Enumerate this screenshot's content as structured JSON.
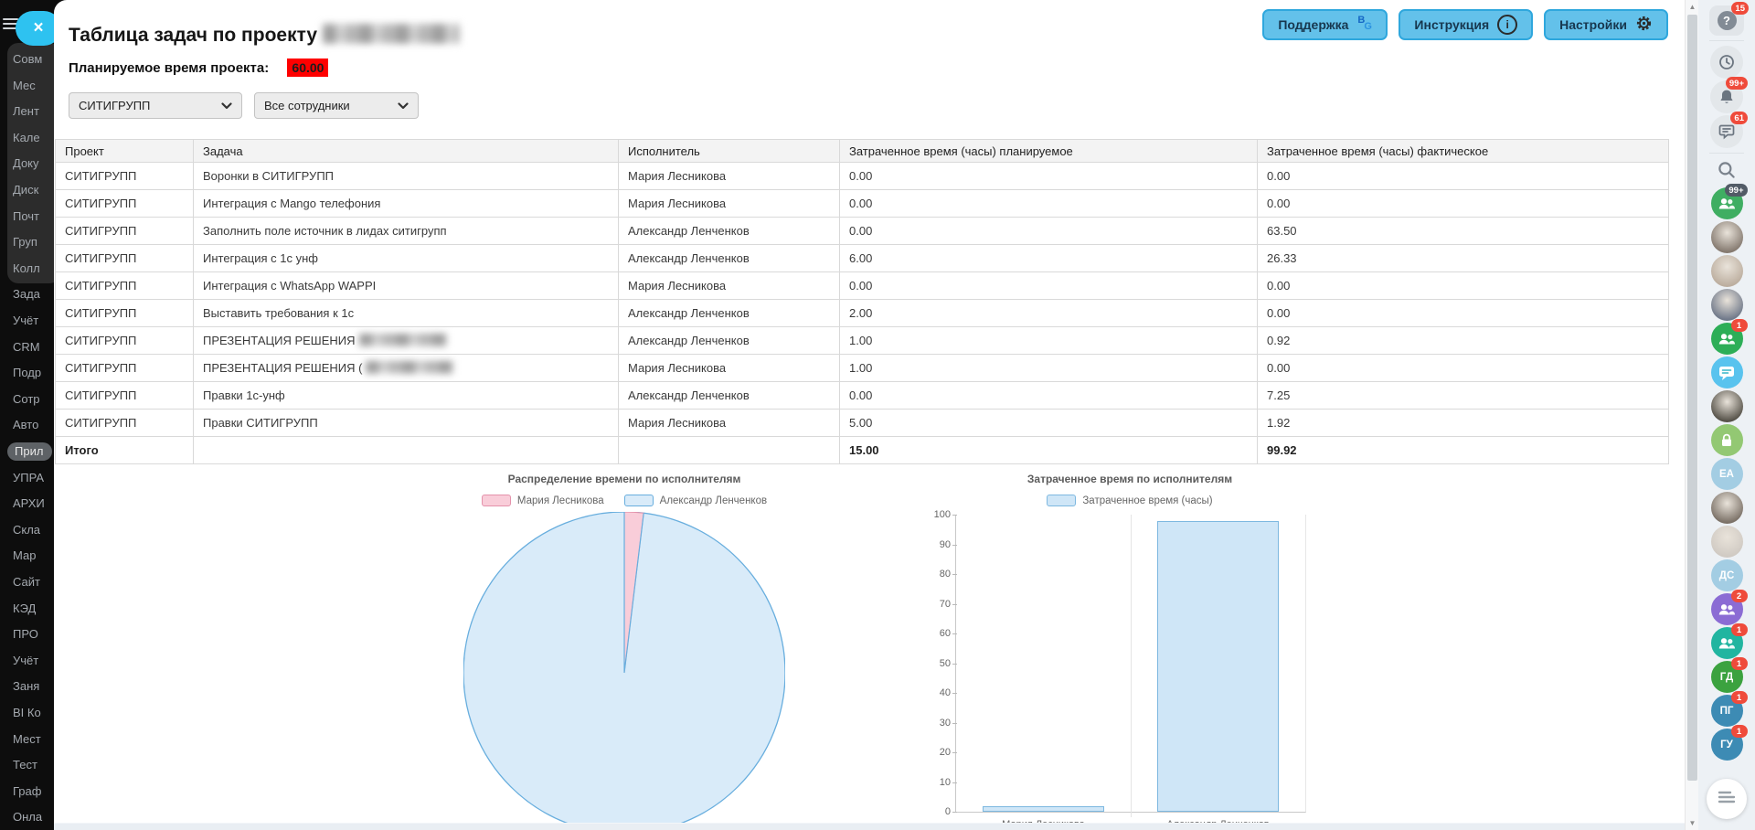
{
  "page": {
    "title": "Таблица задач по проекту"
  },
  "toolbar": {
    "support_label": "Поддержка",
    "instruction_label": "Инструкция",
    "settings_label": "Настройки"
  },
  "planned": {
    "label": "Планируемое время проекта:",
    "value": "60.00"
  },
  "filters": {
    "project": "СИТИГРУПП",
    "employees": "Все сотрудники"
  },
  "table": {
    "columns": [
      "Проект",
      "Задача",
      "Исполнитель",
      "Затраченное время (часы) планируемое",
      "Затраченное время (часы) фактическое"
    ],
    "rows": [
      {
        "project": "СИТИГРУПП",
        "task": "Воронки в СИТИГРУПП",
        "redacted": false,
        "executor": "Мария Лесникова",
        "planned": "0.00",
        "actual": "0.00"
      },
      {
        "project": "СИТИГРУПП",
        "task": "Интеграция с Mango телефония",
        "redacted": false,
        "executor": "Мария Лесникова",
        "planned": "0.00",
        "actual": "0.00"
      },
      {
        "project": "СИТИГРУПП",
        "task": "Заполнить поле источник в лидах ситигрупп",
        "redacted": false,
        "executor": "Александр Ленченков",
        "planned": "0.00",
        "actual": "63.50"
      },
      {
        "project": "СИТИГРУПП",
        "task": "Интеграция с 1с унф",
        "redacted": false,
        "executor": "Александр Ленченков",
        "planned": "6.00",
        "actual": "26.33"
      },
      {
        "project": "СИТИГРУПП",
        "task": "Интеграция с WhatsApp WAPPI",
        "redacted": false,
        "executor": "Мария Лесникова",
        "planned": "0.00",
        "actual": "0.00"
      },
      {
        "project": "СИТИГРУПП",
        "task": "Выставить требования к 1с",
        "redacted": false,
        "executor": "Александр Ленченков",
        "planned": "2.00",
        "actual": "0.00"
      },
      {
        "project": "СИТИГРУПП",
        "task": "ПРЕЗЕНТАЦИЯ РЕШЕНИЯ",
        "redacted": true,
        "executor": "Александр Ленченков",
        "planned": "1.00",
        "actual": "0.92"
      },
      {
        "project": "СИТИГРУПП",
        "task": "ПРЕЗЕНТАЦИЯ РЕШЕНИЯ (",
        "redacted": true,
        "executor": "Мария Лесникова",
        "planned": "1.00",
        "actual": "0.00"
      },
      {
        "project": "СИТИГРУПП",
        "task": "Правки 1с-унф",
        "redacted": false,
        "executor": "Александр Ленченков",
        "planned": "0.00",
        "actual": "7.25"
      },
      {
        "project": "СИТИГРУПП",
        "task": "Правки СИТИГРУПП",
        "redacted": false,
        "executor": "Мария Лесникова",
        "planned": "5.00",
        "actual": "1.92"
      }
    ],
    "total": {
      "label": "Итого",
      "planned": "15.00",
      "actual": "99.92"
    }
  },
  "chart_data": [
    {
      "type": "pie",
      "title": "Распределение времени по исполнителям",
      "series": [
        {
          "name": "Мария Лесникова",
          "value": 1.92
        },
        {
          "name": "Александр Ленченков",
          "value": 98.0
        }
      ],
      "colors": [
        {
          "fill": "#f9cdd9",
          "border": "#e492ab"
        },
        {
          "fill": "#d9ebf9",
          "border": "#68aede"
        }
      ],
      "legend_position": "top"
    },
    {
      "type": "bar",
      "title": "Затраченное время по исполнителям",
      "legend": [
        "Затраченное время (часы)"
      ],
      "categories": [
        "Мария Лесникова",
        "Александр Ленченков"
      ],
      "values": [
        1.92,
        98.0
      ],
      "ylim": [
        0,
        100
      ],
      "ytick_step": 10,
      "bar_fill": "#cfe6f7",
      "bar_border": "#7db8e0"
    }
  ],
  "left_sidebar": {
    "items": [
      {
        "label": "Совм"
      },
      {
        "label": "Мес"
      },
      {
        "label": "Лент"
      },
      {
        "label": "Кале"
      },
      {
        "label": "Доку"
      },
      {
        "label": "Диск"
      },
      {
        "label": "Почт"
      },
      {
        "label": "Груп"
      },
      {
        "label": "Колл"
      },
      {
        "label": "Зада"
      },
      {
        "label": "Учёт"
      },
      {
        "label": "CRM"
      },
      {
        "label": "Подр"
      },
      {
        "label": "Сотр"
      },
      {
        "label": "Авто"
      },
      {
        "label": "Прил",
        "highlight": true
      },
      {
        "label": "УПРА"
      },
      {
        "label": "АРХИ"
      },
      {
        "label": "Скла"
      },
      {
        "label": "Мар"
      },
      {
        "label": "Сайт"
      },
      {
        "label": "КЭД"
      },
      {
        "label": "ПРО"
      },
      {
        "label": "Учёт"
      },
      {
        "label": "Заня"
      },
      {
        "label": "BI Ко"
      },
      {
        "label": "Мест"
      },
      {
        "label": "Тест"
      },
      {
        "label": "Граф"
      },
      {
        "label": "Онла"
      }
    ]
  },
  "right_rail": {
    "icons": [
      {
        "name": "help-button",
        "kind": "help",
        "badge": "15"
      },
      {
        "name": "divider",
        "kind": "divider"
      },
      {
        "name": "history-button",
        "kind": "clock"
      },
      {
        "name": "notifications-button",
        "kind": "bell",
        "badge": "99+"
      },
      {
        "name": "messenger-button",
        "kind": "forum",
        "badge": "61"
      },
      {
        "name": "divider",
        "kind": "divider"
      },
      {
        "name": "search-button",
        "kind": "search"
      },
      {
        "name": "group-chat",
        "kind": "people",
        "color": "#3fae62",
        "badge": "99+",
        "badge_color": "#525b66"
      },
      {
        "name": "user-chat",
        "kind": "photo",
        "color": "#857a70"
      },
      {
        "name": "user-chat",
        "kind": "photo",
        "color": "#bcae9f"
      },
      {
        "name": "user-chat",
        "kind": "photo",
        "color": "#70798a"
      },
      {
        "name": "group-chat",
        "kind": "people",
        "color": "#2dae57",
        "badge": "1"
      },
      {
        "name": "bot-chat",
        "kind": "bubble",
        "color": "#59c3ee"
      },
      {
        "name": "user-chat",
        "kind": "photo",
        "color": "#565249"
      },
      {
        "name": "private-chat",
        "kind": "lock",
        "color": "#93c873"
      },
      {
        "name": "user-chat",
        "kind": "letters",
        "label": "ЕА",
        "color": "#a3cde3"
      },
      {
        "name": "user-chat",
        "kind": "photo",
        "color": "#7b7167"
      },
      {
        "name": "user-chat",
        "kind": "photo",
        "color": "#d0cac3"
      },
      {
        "name": "user-chat",
        "kind": "letters",
        "label": "ДС",
        "color": "#a3cde3"
      },
      {
        "name": "group-chat",
        "kind": "people",
        "color": "#8b6cd4",
        "badge": "2"
      },
      {
        "name": "group-chat",
        "kind": "people",
        "color": "#21b5a0",
        "badge": "1"
      },
      {
        "name": "user-chat",
        "kind": "letters",
        "label": "ГД",
        "color": "#3ba23f",
        "badge": "1"
      },
      {
        "name": "user-chat",
        "kind": "letters",
        "label": "ПГ",
        "color": "#3d8bb4",
        "badge": "1"
      },
      {
        "name": "user-chat",
        "kind": "letters",
        "label": "ГУ",
        "color": "#3d8bb4",
        "badge": "1"
      },
      {
        "name": "chats-menu-button",
        "kind": "menu"
      }
    ]
  },
  "colors": {
    "accent_button": "#63c1ea",
    "badge_red": "#ef4b3b",
    "highlight_red": "#fe0000",
    "close_pill_blue": "#2ec2f0"
  }
}
